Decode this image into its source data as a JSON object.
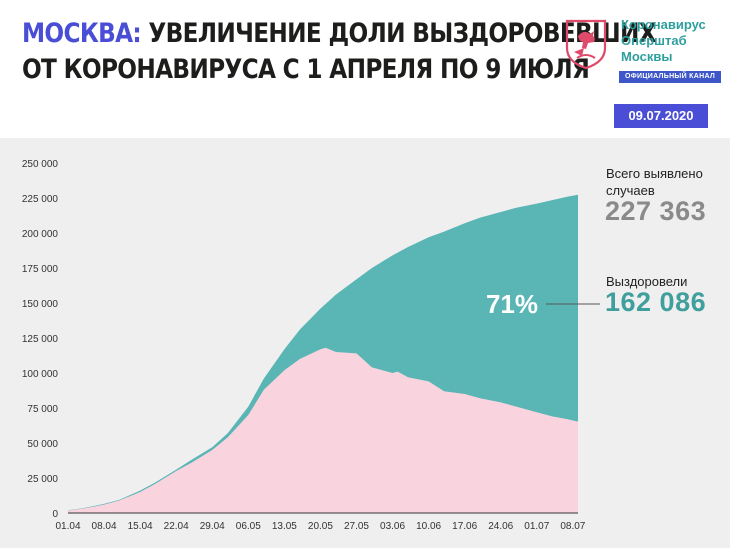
{
  "header": {
    "title_city": "МОСКВА:",
    "title_rest": " УВЕЛИЧЕНИЕ ДОЛИ ВЫЗДОРОВЕВШИХ",
    "title_line2": "ОТ КОРОНАВИРУСА С 1 АПРЕЛЯ ПО 9 ИЮЛЯ",
    "brand_lines": [
      "Коронавирус",
      "Оперштаб",
      "Москвы"
    ],
    "brand_tag": "ОФИЦИАЛЬНЫЙ КАНАЛ",
    "date": "09.07.2020"
  },
  "summary": {
    "total_label_1": "Всего выявлено",
    "total_label_2": "случаев",
    "total_value": "227 363",
    "recovered_label": "Выздоровели",
    "recovered_value": "162 086",
    "percent": "71%"
  },
  "colors": {
    "total": "#5ab5b5",
    "active": "#f9d4df",
    "recovered_text": "#3f9f9d",
    "total_text": "#8a8a8a",
    "accent": "#4a4ed6"
  },
  "chart_data": {
    "type": "area",
    "ylim": [
      0,
      250000
    ],
    "yticks": [
      0,
      25000,
      50000,
      75000,
      100000,
      125000,
      150000,
      175000,
      200000,
      225000,
      250000
    ],
    "ytick_labels": [
      "0",
      "25 000",
      "50 000",
      "75 000",
      "100 000",
      "125 000",
      "150 000",
      "175 000",
      "200 000",
      "225 000",
      "250 000"
    ],
    "xtick_labels": [
      "01.04",
      "08.04",
      "15.04",
      "22.04",
      "29.04",
      "06.05",
      "13.05",
      "20.05",
      "27.05",
      "03.06",
      "10.06",
      "17.06",
      "24.06",
      "01.07",
      "08.07"
    ],
    "x_day_max": 99,
    "series": [
      {
        "role": "total",
        "points": [
          [
            0,
            2000
          ],
          [
            3,
            3500
          ],
          [
            7,
            6500
          ],
          [
            10,
            9500
          ],
          [
            14,
            16000
          ],
          [
            17,
            22000
          ],
          [
            21,
            31000
          ],
          [
            24,
            38000
          ],
          [
            28,
            47000
          ],
          [
            31,
            57000
          ],
          [
            35,
            76000
          ],
          [
            38,
            96000
          ],
          [
            42,
            117000
          ],
          [
            45,
            131000
          ],
          [
            49,
            146000
          ],
          [
            52,
            156000
          ],
          [
            56,
            167000
          ],
          [
            59,
            175000
          ],
          [
            63,
            184000
          ],
          [
            66,
            190000
          ],
          [
            70,
            197000
          ],
          [
            73,
            201000
          ],
          [
            77,
            207000
          ],
          [
            80,
            211000
          ],
          [
            84,
            215000
          ],
          [
            87,
            218000
          ],
          [
            91,
            221000
          ],
          [
            94,
            223500
          ],
          [
            97,
            226000
          ],
          [
            99,
            227363
          ]
        ]
      },
      {
        "role": "active",
        "points": [
          [
            0,
            1800
          ],
          [
            3,
            3200
          ],
          [
            7,
            6000
          ],
          [
            10,
            9000
          ],
          [
            14,
            15000
          ],
          [
            17,
            21000
          ],
          [
            21,
            30000
          ],
          [
            24,
            36000
          ],
          [
            28,
            45000
          ],
          [
            31,
            54000
          ],
          [
            35,
            70000
          ],
          [
            38,
            88000
          ],
          [
            42,
            102000
          ],
          [
            45,
            110000
          ],
          [
            49,
            117000
          ],
          [
            50,
            118000
          ],
          [
            52,
            115000
          ],
          [
            56,
            114000
          ],
          [
            59,
            104000
          ],
          [
            63,
            100000
          ],
          [
            64,
            101000
          ],
          [
            66,
            97000
          ],
          [
            70,
            94000
          ],
          [
            73,
            87000
          ],
          [
            77,
            85000
          ],
          [
            80,
            82000
          ],
          [
            84,
            79000
          ],
          [
            87,
            76000
          ],
          [
            91,
            72000
          ],
          [
            94,
            69000
          ],
          [
            97,
            67000
          ],
          [
            99,
            65277
          ]
        ]
      }
    ]
  }
}
